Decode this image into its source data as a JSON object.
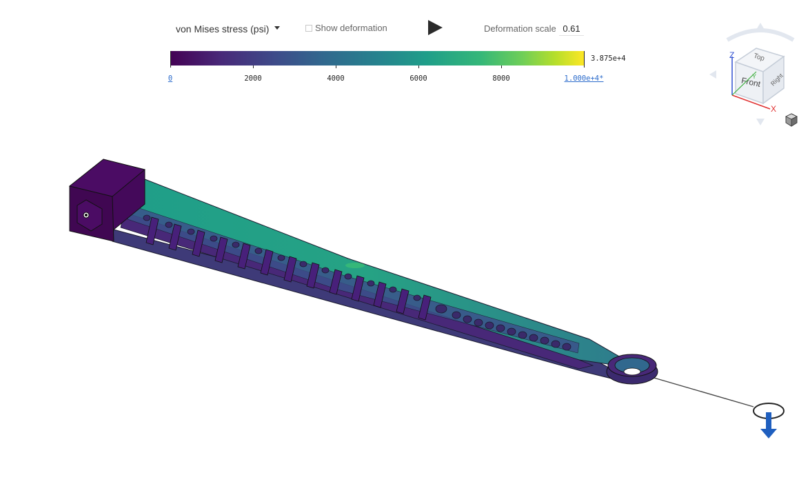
{
  "toolbar": {
    "result_type": "von Mises stress (psi)",
    "show_deformation_label": "Show deformation",
    "show_deformation_checked": false,
    "deformation_scale_label": "Deformation scale",
    "deformation_scale_value": "0.61"
  },
  "colorbar": {
    "colormap": "viridis",
    "min_label": "0",
    "max_label": "1.000e+4*",
    "peak_label": "3.875e+4",
    "tick_labels": [
      "2000",
      "4000",
      "6000",
      "8000"
    ],
    "range": [
      0,
      10000
    ],
    "colors": [
      "#440154",
      "#3e4a89",
      "#26828e",
      "#35b779",
      "#fde725"
    ]
  },
  "viewcube": {
    "faces": [
      "Top",
      "Front",
      "Right"
    ],
    "axes": [
      "X",
      "Y",
      "Z"
    ],
    "axis_colors": {
      "X": "#e03030",
      "Y": "#40b040",
      "Z": "#3050d0"
    }
  },
  "viewport": {
    "background": "#ffffff",
    "load_arrow_color": "#1f5fbf",
    "icons": [
      "play-icon",
      "viewcube-icon",
      "cube-menu-icon",
      "load-arrow-icon"
    ]
  }
}
